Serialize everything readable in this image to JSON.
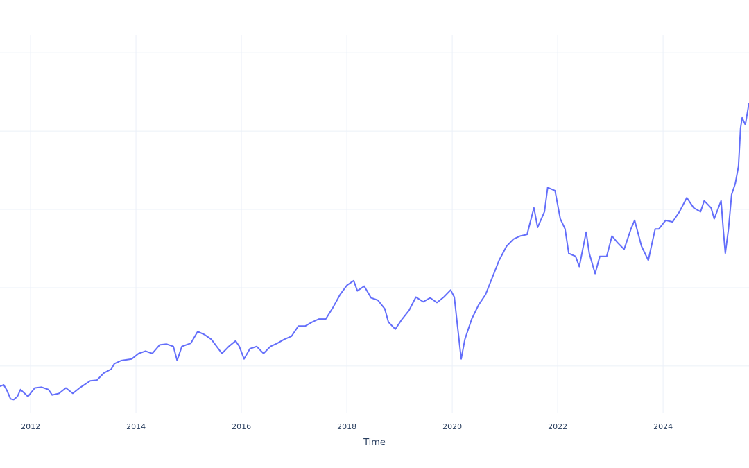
{
  "chart_data": {
    "type": "line",
    "title": "",
    "xlabel": "Time",
    "ylabel": "",
    "xlim": [
      2011.42,
      2025.63
    ],
    "ylim": [
      0.45,
      5.32
    ],
    "grid": true,
    "y_gridlines": [
      1,
      2,
      3,
      4,
      5
    ],
    "x_ticks": [
      2012,
      2014,
      2016,
      2018,
      2020,
      2022,
      2024
    ],
    "x_tick_labels": [
      "2012",
      "2014",
      "2016",
      "2018",
      "2020",
      "2022",
      "2024"
    ],
    "line_color": "#636efa",
    "grid_color": "#ebf0f8",
    "series": [
      {
        "x": [
          2011.42,
          2011.49,
          2011.55,
          2011.62,
          2011.68,
          2011.75,
          2011.81,
          2011.95,
          2012.08,
          2012.21,
          2012.34,
          2012.41,
          2012.54,
          2012.67,
          2012.8,
          2012.93,
          2013.13,
          2013.26,
          2013.39,
          2013.53,
          2013.59,
          2013.72,
          2013.92,
          2014.05,
          2014.18,
          2014.31,
          2014.45,
          2014.58,
          2014.71,
          2014.78,
          2014.87,
          2015.04,
          2015.17,
          2015.3,
          2015.43,
          2015.53,
          2015.63,
          2015.76,
          2015.89,
          2015.96,
          2016.05,
          2016.16,
          2016.29,
          2016.42,
          2016.55,
          2016.68,
          2016.81,
          2016.95,
          2017.08,
          2017.21,
          2017.34,
          2017.47,
          2017.6,
          2017.74,
          2017.87,
          2018.0,
          2018.13,
          2018.2,
          2018.33,
          2018.46,
          2018.59,
          2018.72,
          2018.79,
          2018.92,
          2019.05,
          2019.18,
          2019.31,
          2019.45,
          2019.58,
          2019.71,
          2019.84,
          2019.97,
          2020.04,
          2020.1,
          2020.17,
          2020.24,
          2020.37,
          2020.5,
          2020.63,
          2020.76,
          2020.89,
          2021.03,
          2021.16,
          2021.29,
          2021.42,
          2021.55,
          2021.62,
          2021.75,
          2021.81,
          2021.95,
          2022.05,
          2022.14,
          2022.21,
          2022.34,
          2022.41,
          2022.54,
          2022.6,
          2022.71,
          2022.8,
          2022.93,
          2023.03,
          2023.13,
          2023.26,
          2023.39,
          2023.46,
          2023.59,
          2023.72,
          2023.85,
          2023.92,
          2024.05,
          2024.18,
          2024.31,
          2024.45,
          2024.58,
          2024.71,
          2024.78,
          2024.91,
          2024.97,
          2025.1,
          2025.14,
          2025.18,
          2025.24,
          2025.3,
          2025.37,
          2025.43,
          2025.47,
          2025.5,
          2025.56,
          2025.63
        ],
        "y": [
          0.74,
          0.76,
          0.69,
          0.58,
          0.57,
          0.61,
          0.7,
          0.61,
          0.72,
          0.73,
          0.7,
          0.63,
          0.65,
          0.72,
          0.65,
          0.72,
          0.81,
          0.82,
          0.91,
          0.96,
          1.03,
          1.07,
          1.09,
          1.16,
          1.19,
          1.16,
          1.27,
          1.28,
          1.25,
          1.07,
          1.25,
          1.29,
          1.44,
          1.4,
          1.34,
          1.25,
          1.16,
          1.25,
          1.32,
          1.25,
          1.09,
          1.22,
          1.25,
          1.16,
          1.25,
          1.29,
          1.34,
          1.38,
          1.51,
          1.51,
          1.56,
          1.6,
          1.6,
          1.75,
          1.91,
          2.03,
          2.09,
          1.96,
          2.02,
          1.87,
          1.84,
          1.73,
          1.56,
          1.47,
          1.6,
          1.71,
          1.88,
          1.82,
          1.87,
          1.81,
          1.88,
          1.97,
          1.88,
          1.51,
          1.09,
          1.34,
          1.6,
          1.78,
          1.91,
          2.13,
          2.35,
          2.53,
          2.62,
          2.66,
          2.68,
          3.02,
          2.77,
          2.97,
          3.28,
          3.24,
          2.88,
          2.75,
          2.44,
          2.4,
          2.27,
          2.71,
          2.44,
          2.18,
          2.4,
          2.4,
          2.66,
          2.58,
          2.49,
          2.75,
          2.86,
          2.53,
          2.35,
          2.75,
          2.75,
          2.86,
          2.84,
          2.97,
          3.15,
          3.02,
          2.97,
          3.11,
          3.02,
          2.88,
          3.11,
          2.75,
          2.44,
          2.75,
          3.19,
          3.33,
          3.55,
          4.04,
          4.17,
          4.08,
          4.36
        ]
      }
    ]
  }
}
